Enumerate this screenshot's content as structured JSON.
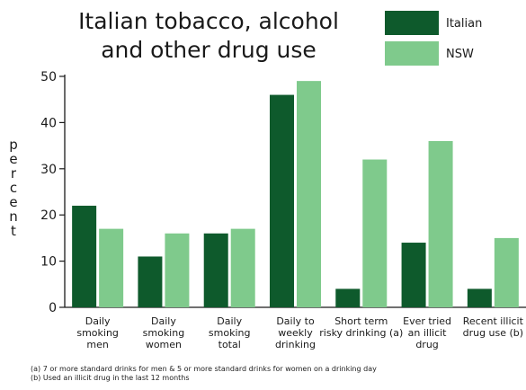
{
  "chart_data": {
    "type": "bar",
    "title_lines": [
      "Italian tobacco, alcohol",
      "and other drug use"
    ],
    "ylabel": "percent",
    "xlabel": "",
    "ylim": [
      0,
      50
    ],
    "yticks": [
      "0",
      "10",
      "20",
      "30",
      "40",
      "50"
    ],
    "legend_position": "top-right",
    "categories": [
      [
        "Daily",
        "smoking",
        "men"
      ],
      [
        "Daily",
        "smoking",
        "women"
      ],
      [
        "Daily",
        "smoking",
        "total"
      ],
      [
        "Daily to",
        "weekly",
        "drinking"
      ],
      [
        "Short term",
        "risky drinking (a)"
      ],
      [
        "Ever tried",
        "an illicit",
        "drug"
      ],
      [
        "Recent illicit",
        "drug use (b)"
      ]
    ],
    "series": [
      {
        "name": "Italian",
        "color": "#0e5a2c",
        "values": [
          22,
          11,
          16,
          46,
          4,
          14,
          4
        ]
      },
      {
        "name": "NSW",
        "color": "#7fca8c",
        "values": [
          17,
          16,
          17,
          49,
          32,
          36,
          15
        ]
      }
    ],
    "grid": false
  },
  "footnotes": [
    "(a) 7 or more standard drinks for men & 5 or more standard drinks for women on a drinking day",
    "(b) Used an illicit drug in the last 12 months"
  ]
}
